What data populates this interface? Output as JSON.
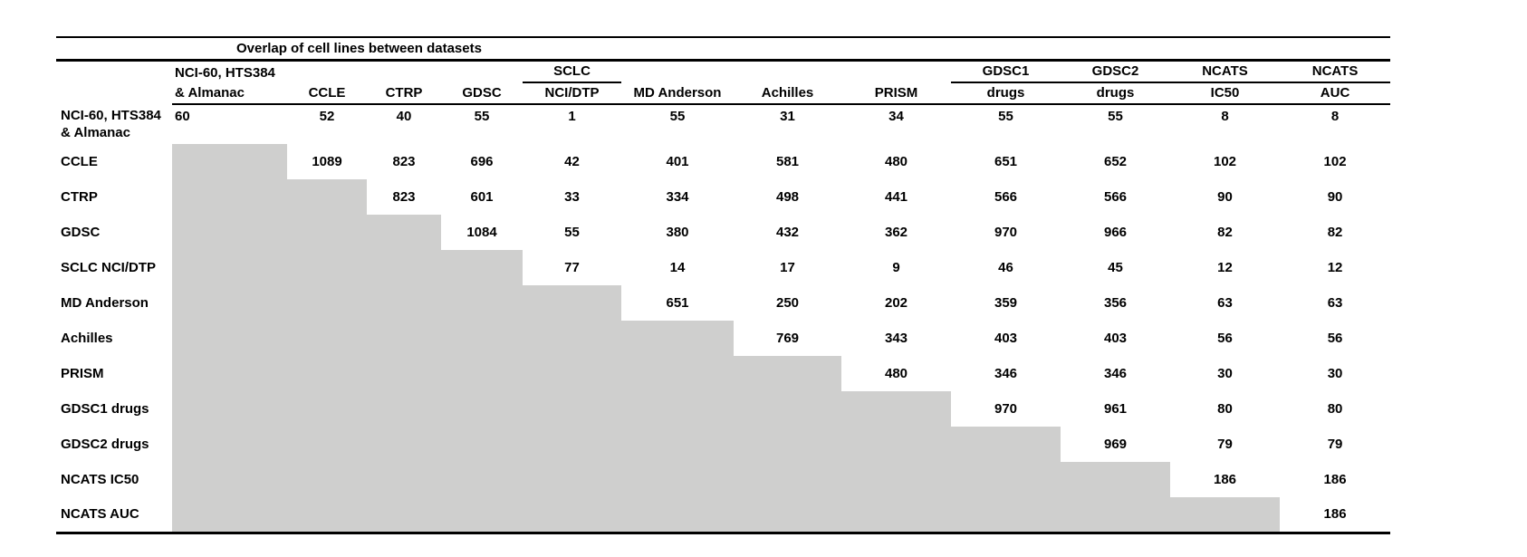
{
  "chart_data": {
    "type": "table",
    "title": "Overlap of cell lines between datasets",
    "column_headers": [
      [
        "NCI-60, HTS384",
        "& Almanac"
      ],
      [
        "",
        "CCLE"
      ],
      [
        "",
        "CTRP"
      ],
      [
        "",
        "GDSC"
      ],
      [
        "SCLC",
        "NCI/DTP"
      ],
      [
        "",
        "MD Anderson"
      ],
      [
        "",
        "Achilles"
      ],
      [
        "",
        "PRISM"
      ],
      [
        "GDSC1",
        "drugs"
      ],
      [
        "GDSC2",
        "drugs"
      ],
      [
        "NCATS",
        "IC50"
      ],
      [
        "NCATS",
        "AUC"
      ]
    ],
    "group_underlined_columns": [
      4,
      8,
      9,
      10,
      11
    ],
    "row_labels": [
      [
        "NCI-60, HTS384",
        "& Almanac"
      ],
      "CCLE",
      "CTRP",
      "GDSC",
      "SCLC NCI/DTP",
      "MD Anderson",
      "Achilles",
      "PRISM",
      "GDSC1 drugs",
      "GDSC2 drugs",
      "NCATS IC50",
      "NCATS AUC"
    ],
    "values": [
      [
        60,
        52,
        40,
        55,
        1,
        55,
        31,
        34,
        55,
        55,
        8,
        8
      ],
      [
        null,
        1089,
        823,
        696,
        42,
        401,
        581,
        480,
        651,
        652,
        102,
        102
      ],
      [
        null,
        null,
        823,
        601,
        33,
        334,
        498,
        441,
        566,
        566,
        90,
        90
      ],
      [
        null,
        null,
        null,
        1084,
        55,
        380,
        432,
        362,
        970,
        966,
        82,
        82
      ],
      [
        null,
        null,
        null,
        null,
        77,
        14,
        17,
        9,
        46,
        45,
        12,
        12
      ],
      [
        null,
        null,
        null,
        null,
        null,
        651,
        250,
        202,
        359,
        356,
        63,
        63
      ],
      [
        null,
        null,
        null,
        null,
        null,
        null,
        769,
        343,
        403,
        403,
        56,
        56
      ],
      [
        null,
        null,
        null,
        null,
        null,
        null,
        null,
        480,
        346,
        346,
        30,
        30
      ],
      [
        null,
        null,
        null,
        null,
        null,
        null,
        null,
        null,
        970,
        961,
        80,
        80
      ],
      [
        null,
        null,
        null,
        null,
        null,
        null,
        null,
        null,
        null,
        969,
        79,
        79
      ],
      [
        null,
        null,
        null,
        null,
        null,
        null,
        null,
        null,
        null,
        null,
        186,
        186
      ],
      [
        null,
        null,
        null,
        null,
        null,
        null,
        null,
        null,
        null,
        null,
        null,
        186
      ]
    ],
    "shade_color": "#cfcfce",
    "layout_hints": {
      "lower_triangle": "shaded",
      "grid": "off",
      "first_column_alignment": "left",
      "value_alignment": "center"
    }
  }
}
